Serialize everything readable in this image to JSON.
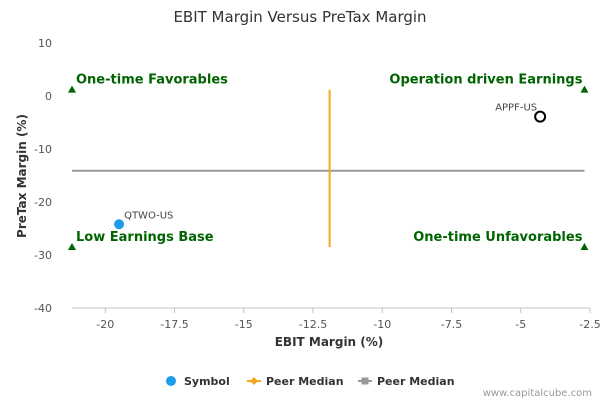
{
  "chart_data": {
    "type": "scatter",
    "title": "EBIT Margin Versus PreTax Margin",
    "xlabel": "EBIT Margin (%)",
    "ylabel": "PreTax Margin (%)",
    "xlim": [
      -21.2,
      -2.5
    ],
    "ylim": [
      -40,
      10
    ],
    "x_ticks": [
      -20,
      -17.5,
      -15,
      -12.5,
      -10,
      -7.5,
      -5,
      -2.5
    ],
    "x_tick_labels": [
      "-20",
      "-17.5",
      "-15",
      "-12.5",
      "-10",
      "-7.5",
      "-5",
      "-2.5"
    ],
    "y_ticks": [
      10,
      0,
      -10,
      -20,
      -30,
      -40
    ],
    "y_tick_labels": [
      "10",
      "0",
      "-10",
      "-20",
      "-30",
      "-40"
    ],
    "grid": false,
    "points": [
      {
        "label": "QTWO-US",
        "x": -19.5,
        "y": -24.2,
        "style": "filled",
        "color": "#1e9be9"
      },
      {
        "label": "APPF-US",
        "x": -4.3,
        "y": -3.9,
        "style": "hollow",
        "color": "#000000"
      }
    ],
    "peer_median_x": {
      "value": -11.9,
      "y_range": [
        -28.5,
        1.2
      ],
      "color": "#f5a623"
    },
    "peer_median_y": {
      "value": -14.1,
      "x_range": [
        -21.2,
        -2.7
      ],
      "color": "#999999"
    },
    "quadrant_labels": [
      {
        "text": "One-time Favorables",
        "x": -21.2,
        "y": 1.2,
        "anchor": "start"
      },
      {
        "text": "Operation driven Earnings",
        "x": -2.7,
        "y": 1.2,
        "anchor": "end"
      },
      {
        "text": "Low Earnings Base",
        "x": -21.2,
        "y": -28.5,
        "anchor": "start"
      },
      {
        "text": "One-time Unfavorables",
        "x": -2.7,
        "y": -28.5,
        "anchor": "end"
      }
    ],
    "marker_color": "#006400",
    "legend": {
      "placement": "bottom-center",
      "items": [
        {
          "label": "Symbol",
          "kind": "dot",
          "color": "#1e9be9"
        },
        {
          "label": "Peer Median",
          "kind": "line-diamond",
          "color": "#f5a623"
        },
        {
          "label": "Peer Median",
          "kind": "line-square",
          "color": "#999999"
        }
      ]
    },
    "credit": "www.capitalcube.com"
  }
}
